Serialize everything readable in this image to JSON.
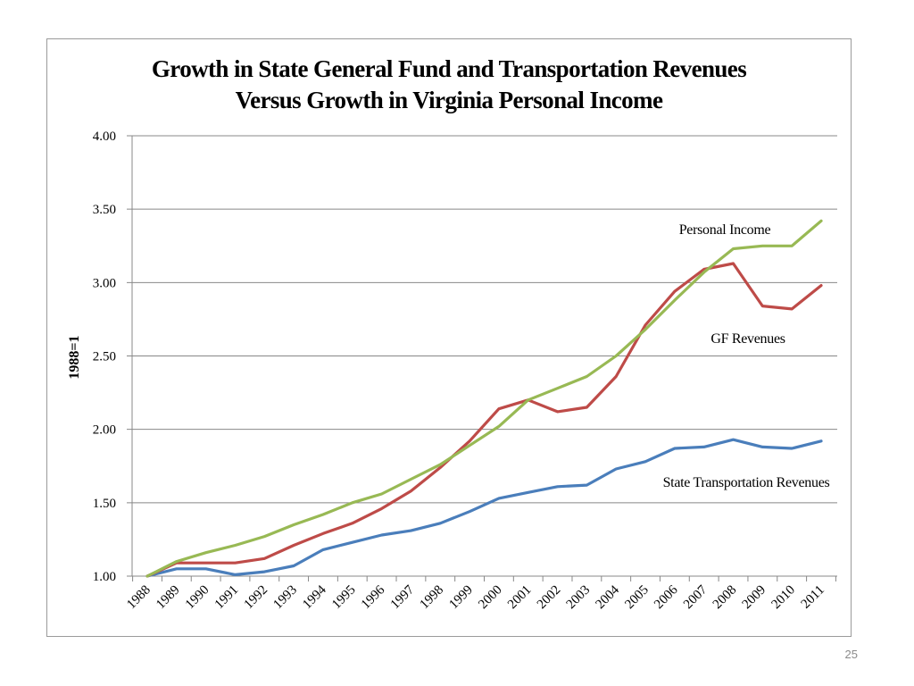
{
  "page": {
    "number": "25"
  },
  "chart_data": {
    "type": "line",
    "title": [
      "Growth in State General Fund and Transportation Revenues",
      "Versus Growth in Virginia Personal Income"
    ],
    "xlabel": "",
    "ylabel": "1988=1",
    "ylim": [
      1.0,
      4.0
    ],
    "yticks": [
      "1.00",
      "1.50",
      "2.00",
      "2.50",
      "3.00",
      "3.50",
      "4.00"
    ],
    "grid": true,
    "categories": [
      "1988",
      "1989",
      "1990",
      "1991",
      "1992",
      "1993",
      "1994",
      "1995",
      "1996",
      "1997",
      "1998",
      "1999",
      "2000",
      "2001",
      "2002",
      "2003",
      "2004",
      "2005",
      "2006",
      "2007",
      "2008",
      "2009",
      "2010",
      "2011"
    ],
    "series": [
      {
        "name": "State Transportation Revenues",
        "color": "#4a7ebb",
        "values": [
          1.0,
          1.05,
          1.05,
          1.01,
          1.03,
          1.07,
          1.18,
          1.23,
          1.28,
          1.31,
          1.36,
          1.44,
          1.53,
          1.57,
          1.61,
          1.62,
          1.73,
          1.78,
          1.87,
          1.88,
          1.93,
          1.88,
          1.87,
          1.92
        ]
      },
      {
        "name": "GF Revenues",
        "color": "#be4b48",
        "values": [
          1.0,
          1.09,
          1.09,
          1.09,
          1.12,
          1.21,
          1.29,
          1.36,
          1.46,
          1.58,
          1.74,
          1.92,
          2.14,
          2.2,
          2.12,
          2.15,
          2.36,
          2.71,
          2.94,
          3.09,
          3.13,
          2.84,
          2.82,
          2.98
        ]
      },
      {
        "name": "Personal Income",
        "color": "#98b954",
        "values": [
          1.0,
          1.1,
          1.16,
          1.21,
          1.27,
          1.35,
          1.42,
          1.5,
          1.56,
          1.66,
          1.76,
          1.89,
          2.02,
          2.2,
          2.28,
          2.36,
          2.5,
          2.68,
          2.88,
          3.07,
          3.23,
          3.25,
          3.25,
          3.42
        ]
      }
    ],
    "annotations": [
      {
        "series": "Personal Income",
        "text": "Personal Income"
      },
      {
        "series": "GF Revenues",
        "text": "GF Revenues"
      },
      {
        "series": "State Transportation Revenues",
        "text": "State Transportation Revenues"
      }
    ]
  }
}
